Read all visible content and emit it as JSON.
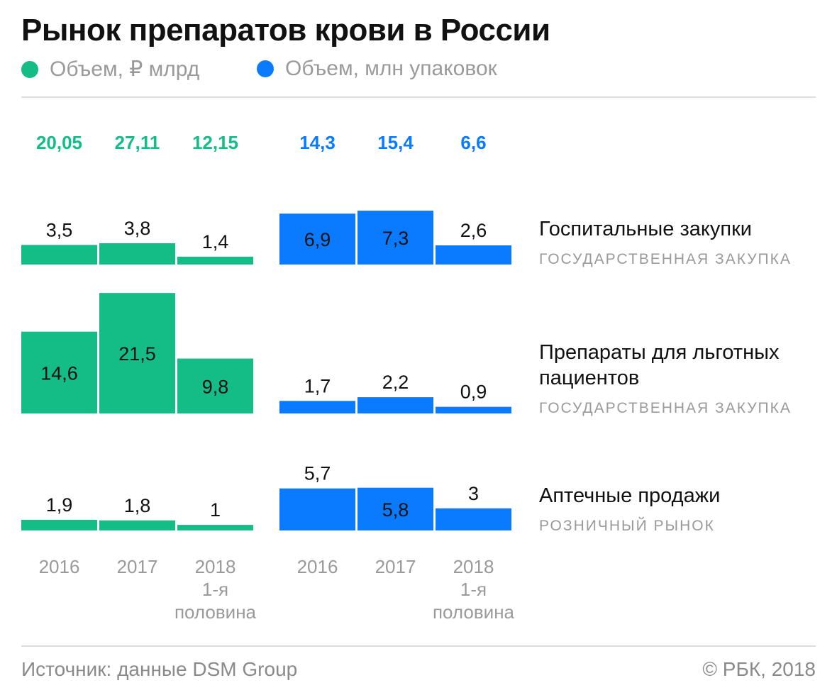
{
  "title": "Рынок препаратов крови в России",
  "colors": {
    "green": "#14BD86",
    "blue": "#0A7BFF",
    "label": "#111111",
    "muted": "#9A9A9A"
  },
  "legend": [
    {
      "label": "Объем, ₽ млрд",
      "color": "#14BD86"
    },
    {
      "label": "Объем, млн упаковок",
      "color": "#0A7BFF"
    }
  ],
  "chart_data": {
    "type": "bar",
    "title": "Рынок препаратов крови в России",
    "categories": [
      "2016",
      "2017",
      "2018\n1-я\nполовина"
    ],
    "groups": [
      {
        "name": "Объем, ₽ млрд",
        "color": "#14BD86",
        "totals": [
          "20,05",
          "27,11",
          "12,15"
        ]
      },
      {
        "name": "Объем, млн упаковок",
        "color": "#0A7BFF",
        "totals": [
          "14,3",
          "15,4",
          "6,6"
        ]
      }
    ],
    "series": [
      {
        "name": "Госпитальные закупки",
        "sublabel": "ГОСУДАРСТВЕННАЯ ЗАКУПКА",
        "rub": [
          3.5,
          3.8,
          1.4
        ],
        "packs": [
          6.9,
          7.3,
          2.6
        ]
      },
      {
        "name": "Препараты для льготных пациентов",
        "sublabel": "ГОСУДАРСТВЕННАЯ ЗАКУПКА",
        "rub": [
          14.6,
          21.5,
          9.8
        ],
        "packs": [
          1.7,
          2.2,
          0.9
        ]
      },
      {
        "name": "Аптечные продажи",
        "sublabel": "РОЗНИЧНЫЙ РЫНОК",
        "rub": [
          1.9,
          1.8,
          1
        ],
        "packs": [
          5.7,
          5.8,
          3
        ]
      }
    ]
  },
  "footer": {
    "source": "Источник: данные DSM Group",
    "copyright": "© РБК, 2018"
  }
}
